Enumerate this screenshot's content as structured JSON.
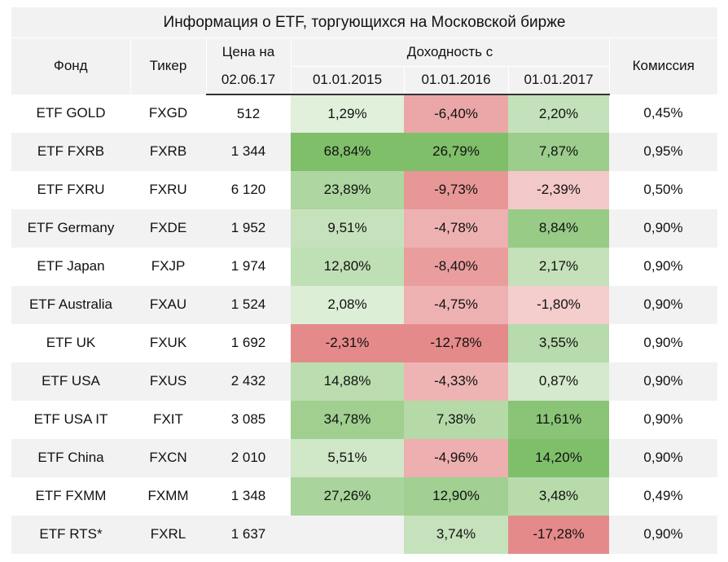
{
  "title": "Информация о ETF, торгующихся на Московской бирже",
  "headers": {
    "fund": "Фонд",
    "ticker": "Тикер",
    "price_line1": "Цена на",
    "price_line2": "02.06.17",
    "yield_group": "Доходность с",
    "y2015": "01.01.2015",
    "y2016": "01.01.2016",
    "y2017": "01.01.2017",
    "fee": "Комиссия"
  },
  "rows": [
    {
      "fund": "ETF GOLD",
      "ticker": "FXGD",
      "price": "512",
      "y2015": "1,29%",
      "y2016": "-6,40%",
      "y2017": "2,20%",
      "fee": "0,45%",
      "v2015": 1.29,
      "v2016": -6.4,
      "v2017": 2.2
    },
    {
      "fund": "ETF FXRB",
      "ticker": "FXRB",
      "price": "1 344",
      "y2015": "68,84%",
      "y2016": "26,79%",
      "y2017": "7,87%",
      "fee": "0,95%",
      "v2015": 68.84,
      "v2016": 26.79,
      "v2017": 7.87
    },
    {
      "fund": "ETF FXRU",
      "ticker": "FXRU",
      "price": "6 120",
      "y2015": "23,89%",
      "y2016": "-9,73%",
      "y2017": "-2,39%",
      "fee": "0,50%",
      "v2015": 23.89,
      "v2016": -9.73,
      "v2017": -2.39
    },
    {
      "fund": "ETF Germany",
      "ticker": "FXDE",
      "price": "1 952",
      "y2015": "9,51%",
      "y2016": "-4,78%",
      "y2017": "8,84%",
      "fee": "0,90%",
      "v2015": 9.51,
      "v2016": -4.78,
      "v2017": 8.84
    },
    {
      "fund": "ETF Japan",
      "ticker": "FXJP",
      "price": "1 974",
      "y2015": "12,80%",
      "y2016": "-8,40%",
      "y2017": "2,17%",
      "fee": "0,90%",
      "v2015": 12.8,
      "v2016": -8.4,
      "v2017": 2.17
    },
    {
      "fund": "ETF Australia",
      "ticker": "FXAU",
      "price": "1 524",
      "y2015": "2,08%",
      "y2016": "-4,75%",
      "y2017": "-1,80%",
      "fee": "0,90%",
      "v2015": 2.08,
      "v2016": -4.75,
      "v2017": -1.8
    },
    {
      "fund": "ETF UK",
      "ticker": "FXUK",
      "price": "1 692",
      "y2015": "-2,31%",
      "y2016": "-12,78%",
      "y2017": "3,55%",
      "fee": "0,90%",
      "v2015": -2.31,
      "v2016": -12.78,
      "v2017": 3.55
    },
    {
      "fund": "ETF USA",
      "ticker": "FXUS",
      "price": "2 432",
      "y2015": "14,88%",
      "y2016": "-4,33%",
      "y2017": "0,87%",
      "fee": "0,90%",
      "v2015": 14.88,
      "v2016": -4.33,
      "v2017": 0.87
    },
    {
      "fund": "ETF USA IT",
      "ticker": "FXIT",
      "price": "3 085",
      "y2015": "34,78%",
      "y2016": "7,38%",
      "y2017": "11,61%",
      "fee": "0,90%",
      "v2015": 34.78,
      "v2016": 7.38,
      "v2017": 11.61
    },
    {
      "fund": "ETF China",
      "ticker": "FXCN",
      "price": "2 010",
      "y2015": "5,51%",
      "y2016": "-4,96%",
      "y2017": "14,20%",
      "fee": "0,90%",
      "v2015": 5.51,
      "v2016": -4.96,
      "v2017": 14.2
    },
    {
      "fund": "ETF FXMM",
      "ticker": "FXMM",
      "price": "1 348",
      "y2015": "27,26%",
      "y2016": "12,90%",
      "y2017": "3,48%",
      "fee": "0,49%",
      "v2015": 27.26,
      "v2016": 12.9,
      "v2017": 3.48
    },
    {
      "fund": "ETF RTS*",
      "ticker": "FXRL",
      "price": "1 637",
      "y2015": "",
      "y2016": "3,74%",
      "y2017": "-17,28%",
      "fee": "0,90%",
      "v2015": null,
      "v2016": 3.74,
      "v2017": -17.28
    }
  ],
  "colors": {
    "header_bg": "#f2f2f2",
    "stripe_bg": "#f2f2f2",
    "green": "#6cb85a",
    "red": "#e06868",
    "green_max": "#8ec47a",
    "red_max": "#e98d8d"
  }
}
